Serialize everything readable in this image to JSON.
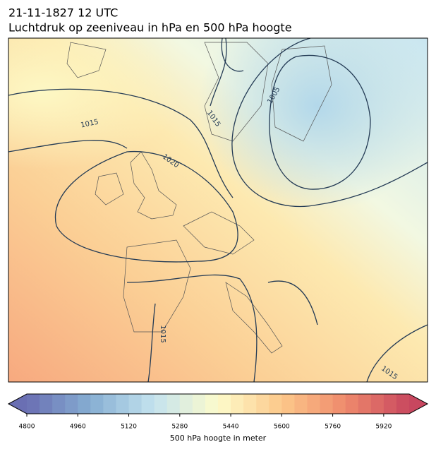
{
  "title": "21-11-1827 12 UTC",
  "subtitle": "Luchtdruk op zeeniveau in hPa en 500 hPa hoogte",
  "contour_labels": [
    "1015",
    "1020",
    "1005",
    "1015",
    "1015",
    "1015"
  ],
  "colorbar": {
    "label": "500 hPa hoogte in meter",
    "lim": [
      4800,
      6000
    ],
    "step": 40,
    "ticks": [
      4800,
      4960,
      5120,
      5280,
      5440,
      5600,
      5760,
      5920
    ],
    "colors": [
      "#6a6fb3",
      "#86aed2",
      "#c4e3ef",
      "#fdfbcb",
      "#fcc88a",
      "#ef8a6c",
      "#c8475f"
    ]
  }
}
